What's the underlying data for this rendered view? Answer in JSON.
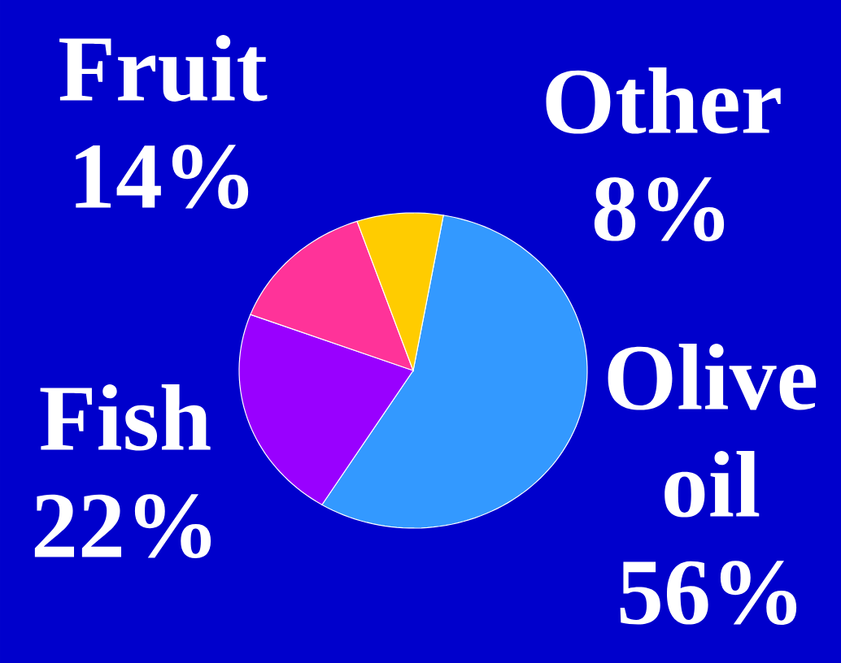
{
  "chart_data": {
    "type": "pie",
    "categories": [
      "Olive oil",
      "Fish",
      "Fruit",
      "Other"
    ],
    "values": [
      56,
      22,
      14,
      8
    ],
    "colors": [
      "#3399ff",
      "#9900ff",
      "#ff3399",
      "#ffcc00"
    ],
    "value_labels": [
      "56%",
      "22%",
      "14%",
      "8%"
    ]
  }
}
